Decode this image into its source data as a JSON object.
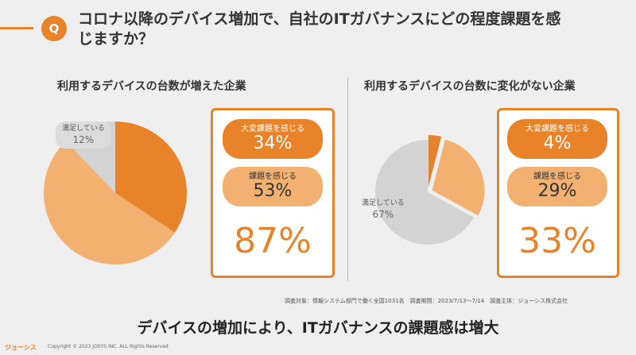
{
  "question": {
    "badge": "Q",
    "title": "コロナ以降のデバイス増加で、自社のITガバナンスにどの程度課題を感じますか？"
  },
  "colors": {
    "accent": "#e8832a",
    "light": "#f2b071",
    "gray": "#d3d3d3"
  },
  "chart_data": [
    {
      "type": "pie",
      "title": "利用するデバイスの台数が増えた企業",
      "slices": [
        {
          "label": "大変課題を感じる",
          "value": 34
        },
        {
          "label": "課題を感じる",
          "value": 53
        },
        {
          "label": "満足している",
          "value": 12
        }
      ],
      "labeled_slice": {
        "label": "満足している",
        "value_text": "12%"
      },
      "summary": [
        {
          "label": "大変課題を感じる",
          "value_text": "34%"
        },
        {
          "label": "課題を感じる",
          "value_text": "53%"
        }
      ],
      "total_text": "87%"
    },
    {
      "type": "pie",
      "title": "利用するデバイスの台数に変化がない企業",
      "slices": [
        {
          "label": "大変課題を感じる",
          "value": 4
        },
        {
          "label": "課題を感じる",
          "value": 29
        },
        {
          "label": "満足している",
          "value": 67
        }
      ],
      "labeled_slice": {
        "label": "満足している",
        "value_text": "67%"
      },
      "summary": [
        {
          "label": "大変課題を感じる",
          "value_text": "4%"
        },
        {
          "label": "課題を感じる",
          "value_text": "29%"
        }
      ],
      "total_text": "33%"
    }
  ],
  "footnote": "調査対象：情報システム部門で働く全国1031名　調査期間：2023/7/13〜7/14　調査主体：ジョーシス株式会社",
  "conclusion": "デバイスの増加により、ITガバナンスの課題感は増大",
  "footer": {
    "logo": "ジョーシス",
    "copyright": "Copyright © 2023 JOSYS INC. ALL Rights Reserved"
  }
}
